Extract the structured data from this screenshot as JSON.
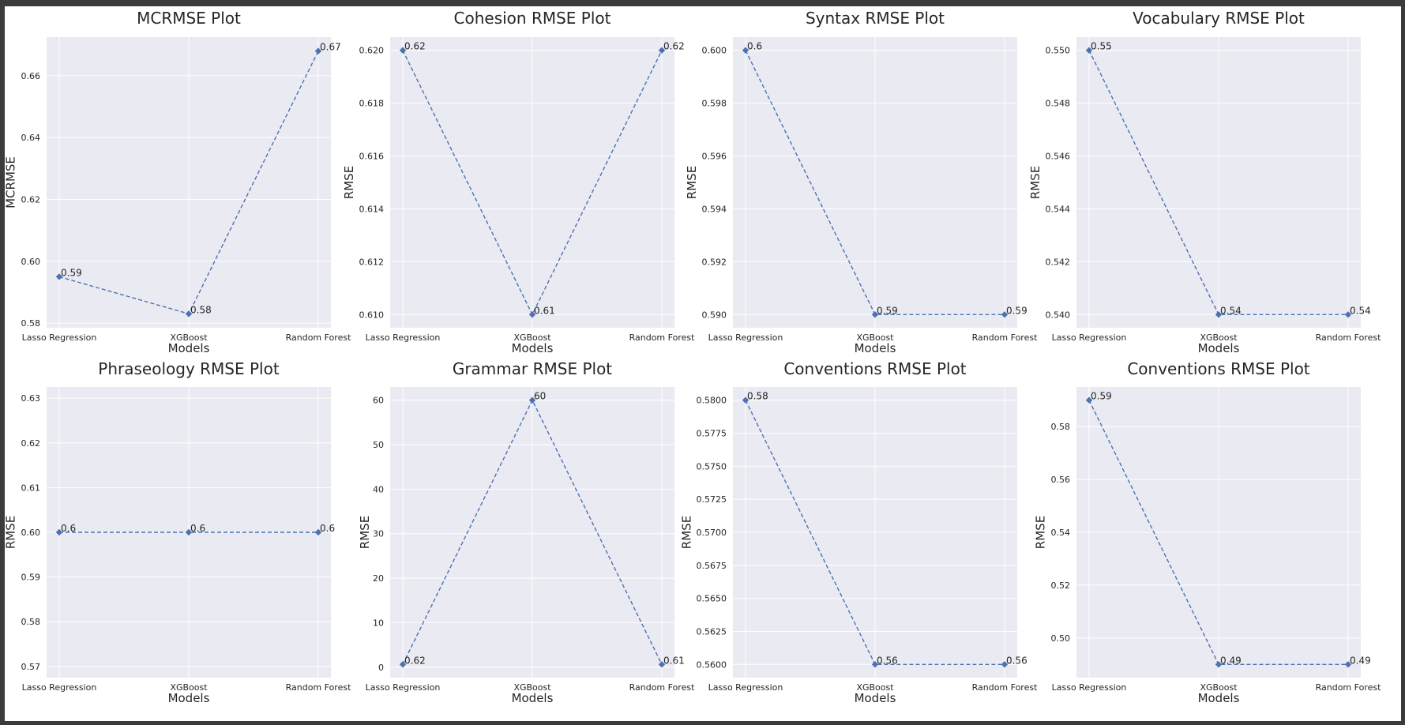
{
  "chart_data": [
    {
      "type": "line",
      "title": "MCRMSE Plot",
      "xlabel": "Models",
      "ylabel": "MCRMSE",
      "categories": [
        "Lasso Regression",
        "XGBoost",
        "Random Forest"
      ],
      "values": [
        0.595,
        0.583,
        0.668
      ],
      "data_labels": [
        "0.59",
        "0.58",
        "0.67"
      ],
      "ylim": [
        0.5785,
        0.6725
      ],
      "yticks": [
        0.58,
        0.6,
        0.62,
        0.64,
        0.66
      ],
      "ytick_labels": [
        "0.58",
        "0.60",
        "0.62",
        "0.64",
        "0.66"
      ],
      "grid": true
    },
    {
      "type": "line",
      "title": "Cohesion RMSE Plot",
      "xlabel": "Models",
      "ylabel": "RMSE",
      "categories": [
        "Lasso Regression",
        "XGBoost",
        "Random Forest"
      ],
      "values": [
        0.62,
        0.61,
        0.62
      ],
      "data_labels": [
        "0.62",
        "0.61",
        "0.62"
      ],
      "ylim": [
        0.6095,
        0.6205
      ],
      "yticks": [
        0.61,
        0.612,
        0.614,
        0.616,
        0.618,
        0.62
      ],
      "ytick_labels": [
        "0.610",
        "0.612",
        "0.614",
        "0.616",
        "0.618",
        "0.620"
      ],
      "grid": true
    },
    {
      "type": "line",
      "title": "Syntax RMSE Plot",
      "xlabel": "Models",
      "ylabel": "RMSE",
      "categories": [
        "Lasso Regression",
        "XGBoost",
        "Random Forest"
      ],
      "values": [
        0.6,
        0.59,
        0.59
      ],
      "data_labels": [
        "0.6",
        "0.59",
        "0.59"
      ],
      "ylim": [
        0.5895,
        0.6005
      ],
      "yticks": [
        0.59,
        0.592,
        0.594,
        0.596,
        0.598,
        0.6
      ],
      "ytick_labels": [
        "0.590",
        "0.592",
        "0.594",
        "0.596",
        "0.598",
        "0.600"
      ],
      "grid": true
    },
    {
      "type": "line",
      "title": "Vocabulary RMSE Plot",
      "xlabel": "Models",
      "ylabel": "RMSE",
      "categories": [
        "Lasso Regression",
        "XGBoost",
        "Random Forest"
      ],
      "values": [
        0.55,
        0.54,
        0.54
      ],
      "data_labels": [
        "0.55",
        "0.54",
        "0.54"
      ],
      "ylim": [
        0.5395,
        0.5505
      ],
      "yticks": [
        0.54,
        0.542,
        0.544,
        0.546,
        0.548,
        0.55
      ],
      "ytick_labels": [
        "0.540",
        "0.542",
        "0.544",
        "0.546",
        "0.548",
        "0.550"
      ],
      "grid": true
    },
    {
      "type": "line",
      "title": "Phraseology RMSE Plot",
      "xlabel": "Models",
      "ylabel": "RMSE",
      "categories": [
        "Lasso Regression",
        "XGBoost",
        "Random Forest"
      ],
      "values": [
        0.6,
        0.6,
        0.6
      ],
      "data_labels": [
        "0.6",
        "0.6",
        "0.6"
      ],
      "ylim": [
        0.5675,
        0.6325
      ],
      "yticks": [
        0.57,
        0.58,
        0.59,
        0.6,
        0.61,
        0.62,
        0.63
      ],
      "ytick_labels": [
        "0.57",
        "0.58",
        "0.59",
        "0.60",
        "0.61",
        "0.62",
        "0.63"
      ],
      "grid": true
    },
    {
      "type": "line",
      "title": "Grammar RMSE Plot",
      "xlabel": "Models",
      "ylabel": "RMSE",
      "categories": [
        "Lasso Regression",
        "XGBoost",
        "Random Forest"
      ],
      "values": [
        0.62,
        60,
        0.61
      ],
      "data_labels": [
        "0.62",
        "60",
        "0.61"
      ],
      "ylim": [
        -2.35,
        62.97
      ],
      "yticks": [
        0,
        10,
        20,
        30,
        40,
        50,
        60
      ],
      "ytick_labels": [
        "0",
        "10",
        "20",
        "30",
        "40",
        "50",
        "60"
      ],
      "grid": true
    },
    {
      "type": "line",
      "title": "Conventions RMSE Plot",
      "xlabel": "Models",
      "ylabel": "RMSE",
      "categories": [
        "Lasso Regression",
        "XGBoost",
        "Random Forest"
      ],
      "values": [
        0.58,
        0.56,
        0.56
      ],
      "data_labels": [
        "0.58",
        "0.56",
        "0.56"
      ],
      "ylim": [
        0.559,
        0.581
      ],
      "yticks": [
        0.56,
        0.5625,
        0.565,
        0.5675,
        0.57,
        0.5725,
        0.575,
        0.5775,
        0.58
      ],
      "ytick_labels": [
        "0.5600",
        "0.5625",
        "0.5650",
        "0.5675",
        "0.5700",
        "0.5725",
        "0.5750",
        "0.5775",
        "0.5800"
      ],
      "grid": true
    },
    {
      "type": "line",
      "title": "Conventions RMSE Plot",
      "xlabel": "Models",
      "ylabel": "RMSE",
      "categories": [
        "Lasso Regression",
        "XGBoost",
        "Random Forest"
      ],
      "values": [
        0.59,
        0.49,
        0.49
      ],
      "data_labels": [
        "0.59",
        "0.49",
        "0.49"
      ],
      "ylim": [
        0.485,
        0.595
      ],
      "yticks": [
        0.5,
        0.52,
        0.54,
        0.56,
        0.58
      ],
      "ytick_labels": [
        "0.50",
        "0.52",
        "0.54",
        "0.56",
        "0.58"
      ],
      "grid": true
    }
  ],
  "style": {
    "panel_background": "#eaeaf2",
    "grid_color": "#ffffff",
    "line_color": "#4c72b0",
    "text_color": "#262626"
  }
}
